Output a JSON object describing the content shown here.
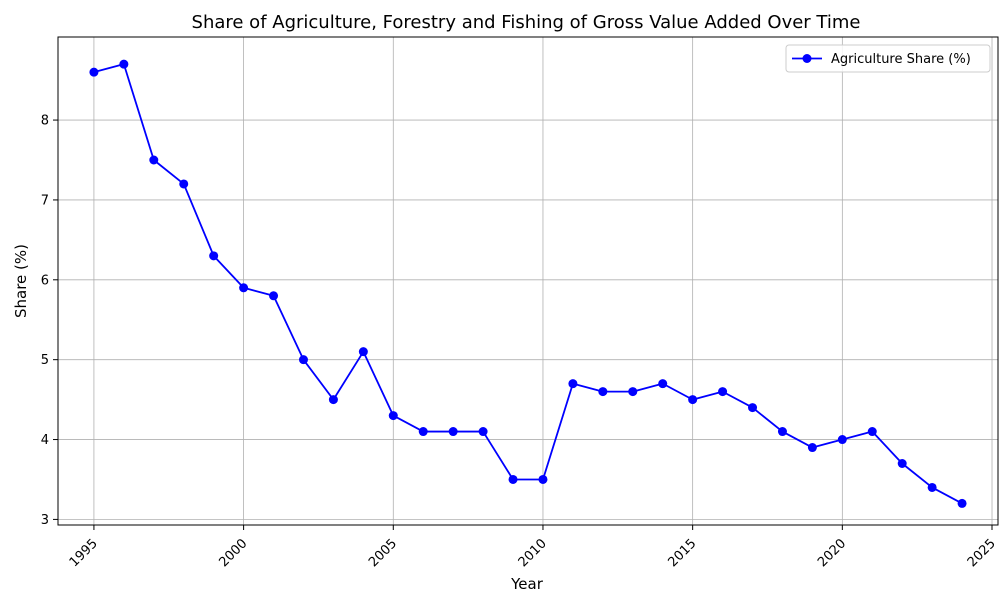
{
  "chart_data": {
    "type": "line",
    "title": "Share of Agriculture, Forestry and Fishing of Gross Value Added Over Time",
    "xlabel": "Year",
    "ylabel": "Share (%)",
    "xlim": [
      1993.8,
      2025.2
    ],
    "ylim": [
      2.93,
      9.04
    ],
    "x_ticks": [
      1995,
      2000,
      2005,
      2010,
      2015,
      2020,
      2025
    ],
    "y_ticks": [
      3,
      4,
      5,
      6,
      7,
      8
    ],
    "grid": true,
    "legend_position": "top-right",
    "series": [
      {
        "name": "Agriculture Share (%)",
        "color": "#0000ff",
        "marker": "circle",
        "x": [
          1995,
          1996,
          1997,
          1998,
          1999,
          2000,
          2001,
          2002,
          2003,
          2004,
          2005,
          2006,
          2007,
          2008,
          2009,
          2010,
          2011,
          2012,
          2013,
          2014,
          2015,
          2016,
          2017,
          2018,
          2019,
          2020,
          2021,
          2022,
          2023,
          2024
        ],
        "y": [
          8.6,
          8.7,
          7.5,
          7.2,
          6.3,
          5.9,
          5.8,
          5.0,
          4.5,
          5.1,
          4.3,
          4.1,
          4.1,
          4.1,
          3.5,
          3.5,
          4.7,
          4.6,
          4.6,
          4.7,
          4.5,
          4.6,
          4.4,
          4.1,
          3.9,
          4.0,
          4.1,
          3.7,
          3.4,
          3.2
        ]
      }
    ]
  }
}
